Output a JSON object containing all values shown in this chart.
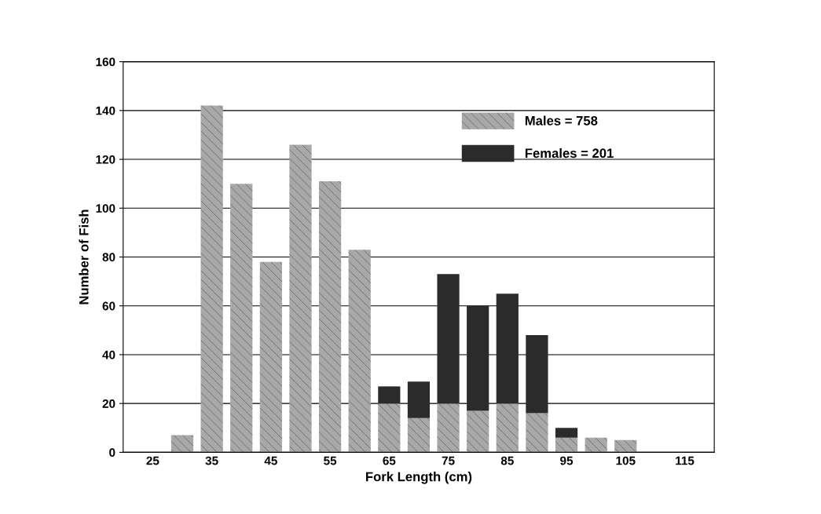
{
  "chart_data": {
    "type": "bar",
    "stacked": true,
    "xlabel": "Fork Length (cm)",
    "ylabel": "Number of Fish",
    "categories": [
      "25",
      null,
      "35",
      null,
      "45",
      null,
      "55",
      null,
      "65",
      null,
      "75",
      null,
      "85",
      null,
      "95",
      null,
      "105",
      null,
      "115"
    ],
    "series": [
      {
        "name": "Males = 758",
        "color": "#a8a8a8",
        "values": [
          null,
          7,
          142,
          110,
          78,
          126,
          111,
          83,
          20,
          14,
          20,
          17,
          20,
          16,
          6,
          6,
          5,
          null,
          null
        ]
      },
      {
        "name": "Females = 201",
        "color": "#2b2b2b",
        "values": [
          null,
          null,
          null,
          null,
          null,
          null,
          null,
          null,
          7,
          15,
          53,
          43,
          45,
          32,
          4,
          null,
          null,
          null,
          null
        ]
      }
    ],
    "ylim": [
      0,
      160
    ],
    "yticks": [
      0,
      20,
      40,
      60,
      80,
      100,
      120,
      140,
      160
    ],
    "grid": "y",
    "legend": "top right"
  }
}
